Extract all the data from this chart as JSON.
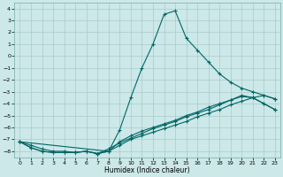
{
  "xlabel": "Humidex (Indice chaleur)",
  "background_color": "#cce8e8",
  "grid_color": "#aacaca",
  "line_color": "#006666",
  "xlim": [
    -0.5,
    23.5
  ],
  "ylim": [
    -8.5,
    4.5
  ],
  "yticks": [
    4,
    3,
    2,
    1,
    0,
    -1,
    -2,
    -3,
    -4,
    -5,
    -6,
    -7,
    -8
  ],
  "xticks": [
    0,
    1,
    2,
    3,
    4,
    5,
    6,
    7,
    8,
    9,
    10,
    11,
    12,
    13,
    14,
    15,
    16,
    17,
    18,
    19,
    20,
    21,
    22,
    23
  ],
  "line1_x": [
    0,
    1,
    2,
    3,
    4,
    5,
    6,
    7,
    8,
    9,
    10,
    11,
    12,
    13,
    14,
    15,
    16,
    17,
    18,
    19,
    20,
    21,
    22,
    23
  ],
  "line1_y": [
    -7.2,
    -7.7,
    -8.0,
    -8.1,
    -8.1,
    -8.1,
    -8.0,
    -8.2,
    -8.0,
    -6.2,
    -3.5,
    -1.0,
    1.0,
    3.5,
    3.8,
    1.5,
    0.5,
    -0.5,
    -1.5,
    -2.2,
    -2.7,
    -3.0,
    -3.3,
    -3.6
  ],
  "line2_x": [
    0,
    1,
    2,
    3,
    4,
    5,
    6,
    7,
    8,
    9,
    10,
    11,
    12,
    13,
    14,
    15,
    16,
    17,
    18,
    19,
    20,
    21,
    22,
    23
  ],
  "line2_y": [
    -7.2,
    -7.7,
    -8.0,
    -8.1,
    -8.1,
    -8.1,
    -8.0,
    -8.2,
    -8.0,
    -7.5,
    -7.0,
    -6.7,
    -6.4,
    -6.1,
    -5.8,
    -5.5,
    -5.1,
    -4.8,
    -4.5,
    -4.1,
    -3.8,
    -3.5,
    -3.3,
    -3.6
  ],
  "line3_x": [
    0,
    8,
    9,
    10,
    11,
    12,
    13,
    14,
    15,
    16,
    17,
    18,
    19,
    20,
    21,
    22,
    23
  ],
  "line3_y": [
    -7.2,
    -8.0,
    -7.2,
    -6.7,
    -6.3,
    -6.0,
    -5.7,
    -5.4,
    -5.0,
    -4.7,
    -4.3,
    -4.0,
    -3.7,
    -3.3,
    -3.5,
    -4.0,
    -4.5
  ],
  "line4_x": [
    0,
    1,
    2,
    3,
    4,
    5,
    6,
    7,
    8,
    9,
    10,
    11,
    12,
    13,
    14,
    15,
    16,
    17,
    18,
    19,
    20,
    21,
    22,
    23
  ],
  "line4_y": [
    -7.2,
    -7.5,
    -7.8,
    -8.0,
    -8.0,
    -8.1,
    -8.0,
    -8.2,
    -7.8,
    -7.3,
    -6.9,
    -6.5,
    -6.1,
    -5.8,
    -5.5,
    -5.1,
    -4.8,
    -4.5,
    -4.1,
    -3.7,
    -3.4,
    -3.5,
    -4.0,
    -4.5
  ]
}
